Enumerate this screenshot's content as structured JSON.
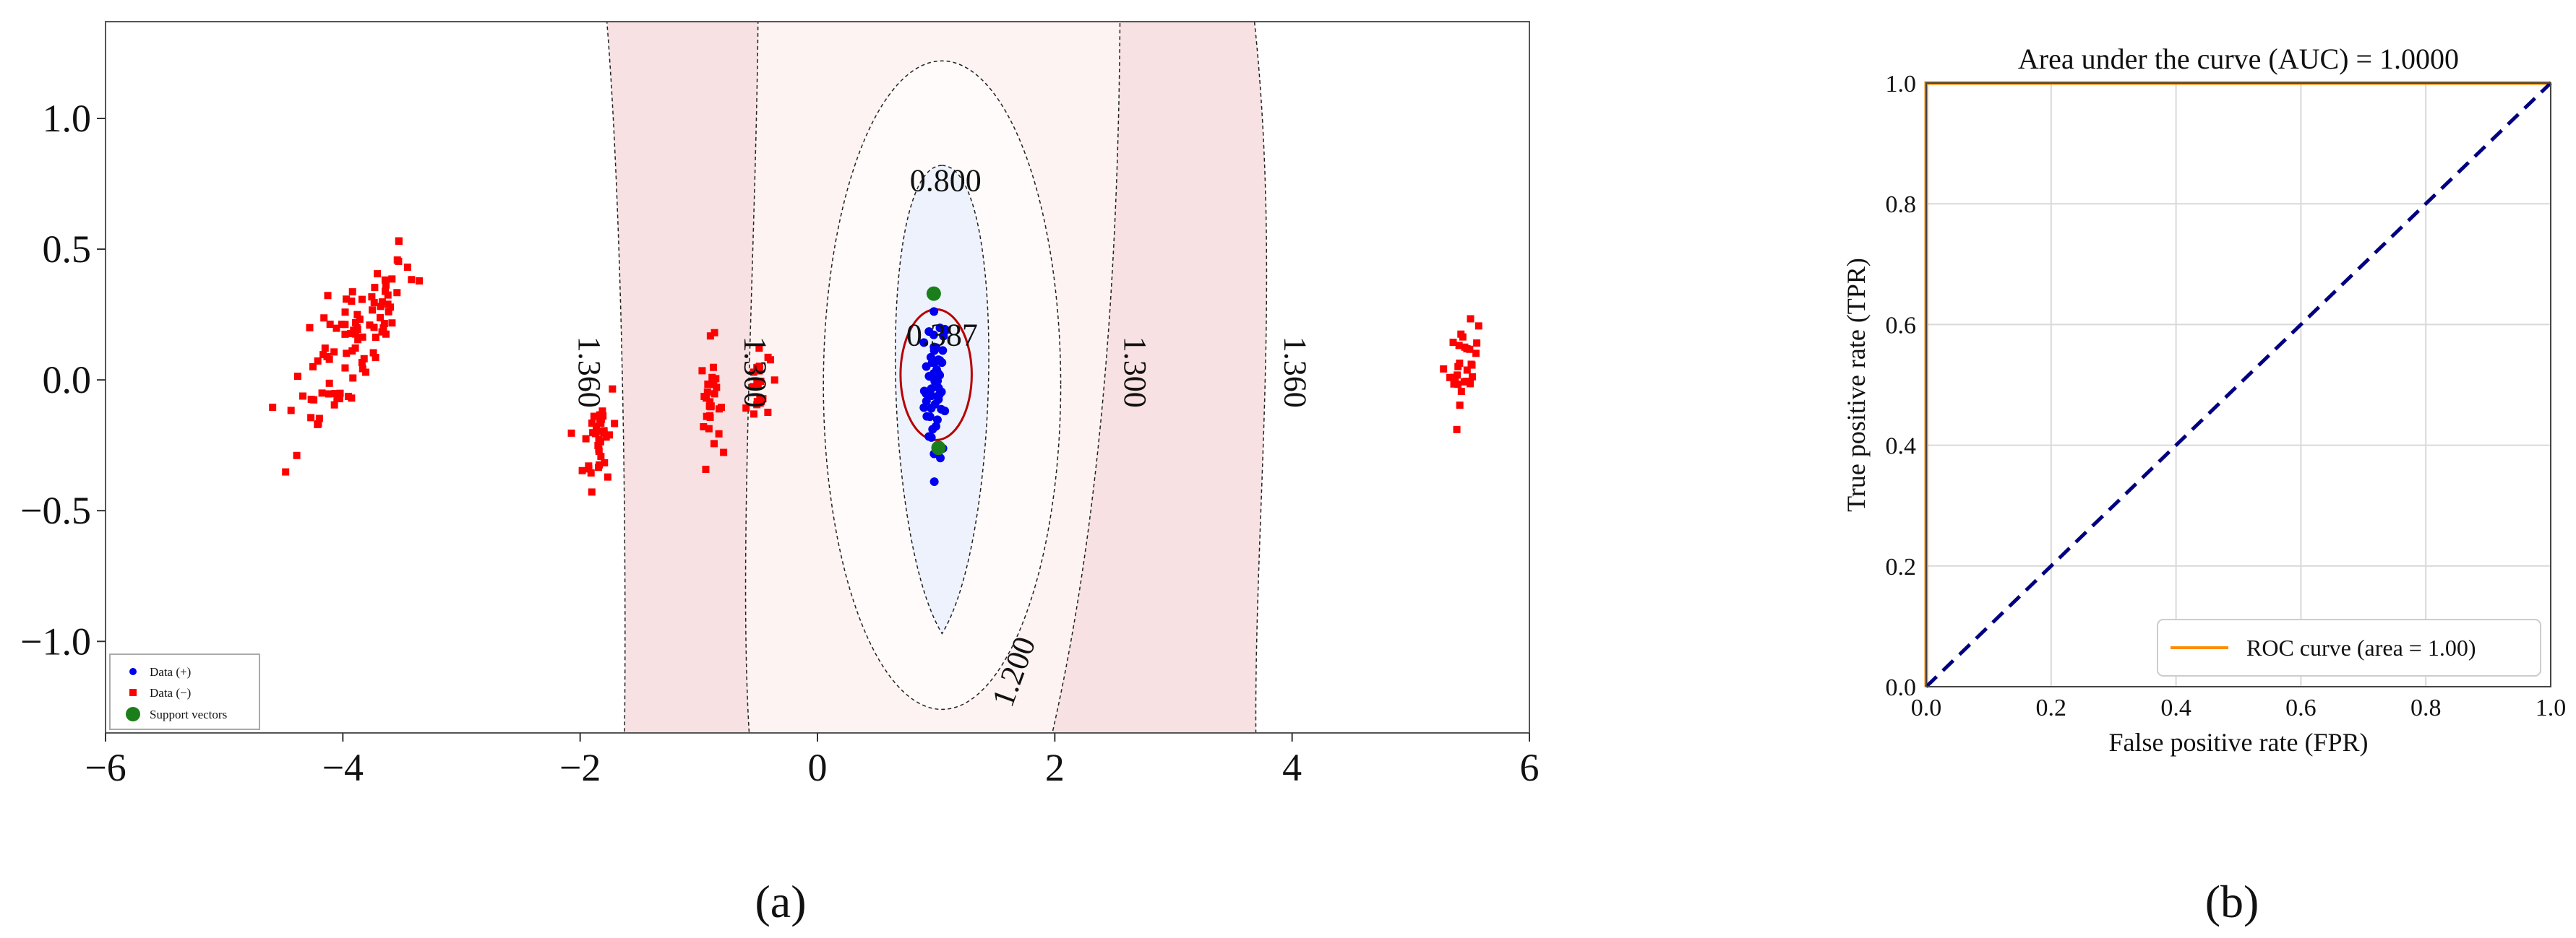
{
  "chart_data": [
    {
      "type": "scatter",
      "subplot_label": "(a)",
      "xlim": [
        -6,
        6
      ],
      "ylim": [
        -1.35,
        1.37
      ],
      "xticks": [
        -6,
        -4,
        -2,
        0,
        2,
        4,
        6
      ],
      "xtick_labels": [
        "−6",
        "−4",
        "−2",
        "0",
        "2",
        "4",
        "6"
      ],
      "yticks": [
        1.0,
        0.5,
        0.0,
        -0.5,
        -1.0
      ],
      "ytick_labels": [
        "1.0",
        "0.5",
        "0.0",
        "−0.5",
        "−1.0"
      ],
      "grid": false,
      "legend_position": "lower-left",
      "legend": [
        {
          "label": "Data (+)",
          "marker": "circle",
          "color": "#0000ee"
        },
        {
          "label": "Data (−)",
          "marker": "square",
          "color": "#ff0000"
        },
        {
          "label": "Support vectors",
          "marker": "circle-large",
          "color": "#1a7f1a"
        }
      ],
      "contour_labels": [
        {
          "text": "0.800",
          "x": 1.08,
          "y": 0.75,
          "rotation": 0
        },
        {
          "text": "0.387",
          "x": 1.05,
          "y": 0.16,
          "rotation": 0
        },
        {
          "text": "1.360",
          "x": -1.95,
          "y": 0.03,
          "rotation": 90
        },
        {
          "text": "1.300",
          "x": -0.55,
          "y": 0.03,
          "rotation": 90
        },
        {
          "text": "1.300",
          "x": 2.65,
          "y": 0.03,
          "rotation": 90
        },
        {
          "text": "1.360",
          "x": 4.0,
          "y": 0.03,
          "rotation": 90
        },
        {
          "text": "1.200",
          "x": 1.68,
          "y": -1.12,
          "rotation": -70
        }
      ],
      "series": [
        {
          "name": "Data (+)",
          "color": "#0000ee",
          "marker": "circle",
          "clusters": [
            {
              "cx": 1.0,
              "cy": -0.02,
              "sx": 0.05,
              "sy": 0.14,
              "n": 55,
              "tilt": 0.12
            }
          ]
        },
        {
          "name": "Data (−)",
          "color": "#ff0000",
          "marker": "square",
          "clusters": [
            {
              "cx": -3.95,
              "cy": 0.12,
              "sx": 0.28,
              "sy": 0.12,
              "n": 95,
              "tilt": 0.55
            },
            {
              "cx": -1.83,
              "cy": -0.21,
              "sx": 0.07,
              "sy": 0.09,
              "n": 35,
              "tilt": 0.4
            },
            {
              "cx": -0.9,
              "cy": -0.08,
              "sx": 0.04,
              "sy": 0.11,
              "n": 28,
              "tilt": 0.2
            },
            {
              "cx": -0.5,
              "cy": -0.02,
              "sx": 0.05,
              "sy": 0.08,
              "n": 24,
              "tilt": 0.3
            },
            {
              "cx": 5.45,
              "cy": 0.06,
              "sx": 0.06,
              "sy": 0.07,
              "n": 30,
              "tilt": 0.2
            }
          ]
        },
        {
          "name": "Support vectors",
          "color": "#1a7f1a",
          "marker": "circle-large",
          "points": [
            [
              0.98,
              0.33
            ],
            [
              1.02,
              -0.26
            ]
          ]
        }
      ],
      "colors": {
        "region_outer": "#f7e1e2",
        "region_mid": "#fdf3f2",
        "region_center": "#edf2fc",
        "boundary": "#b80000",
        "contour_line": "#222222",
        "frame": "#555555"
      }
    },
    {
      "type": "line",
      "subplot_label": "(b)",
      "title": "Area under the curve (AUC) = 1.0000",
      "xlabel": "False positive rate (FPR)",
      "ylabel": "True positive rate (TPR)",
      "xlim": [
        0,
        1
      ],
      "ylim": [
        0,
        1
      ],
      "xticks": [
        0.0,
        0.2,
        0.4,
        0.6,
        0.8,
        1.0
      ],
      "xtick_labels": [
        "0.0",
        "0.2",
        "0.4",
        "0.6",
        "0.8",
        "1.0"
      ],
      "yticks": [
        0.0,
        0.2,
        0.4,
        0.6,
        0.8,
        1.0
      ],
      "ytick_labels": [
        "0.0",
        "0.2",
        "0.4",
        "0.6",
        "0.8",
        "1.0"
      ],
      "grid": true,
      "legend_position": "lower-right",
      "series": [
        {
          "name": "ROC curve (area = 1.00)",
          "color": "#ff8c00",
          "style": "solid",
          "x": [
            0,
            0,
            1
          ],
          "y": [
            0,
            1,
            1
          ]
        },
        {
          "name": "",
          "color": "#000080",
          "style": "dashed",
          "x": [
            0,
            1
          ],
          "y": [
            0,
            1
          ]
        }
      ],
      "legend": [
        {
          "label": "ROC curve (area = 1.00)",
          "color": "#ff8c00"
        }
      ]
    }
  ]
}
